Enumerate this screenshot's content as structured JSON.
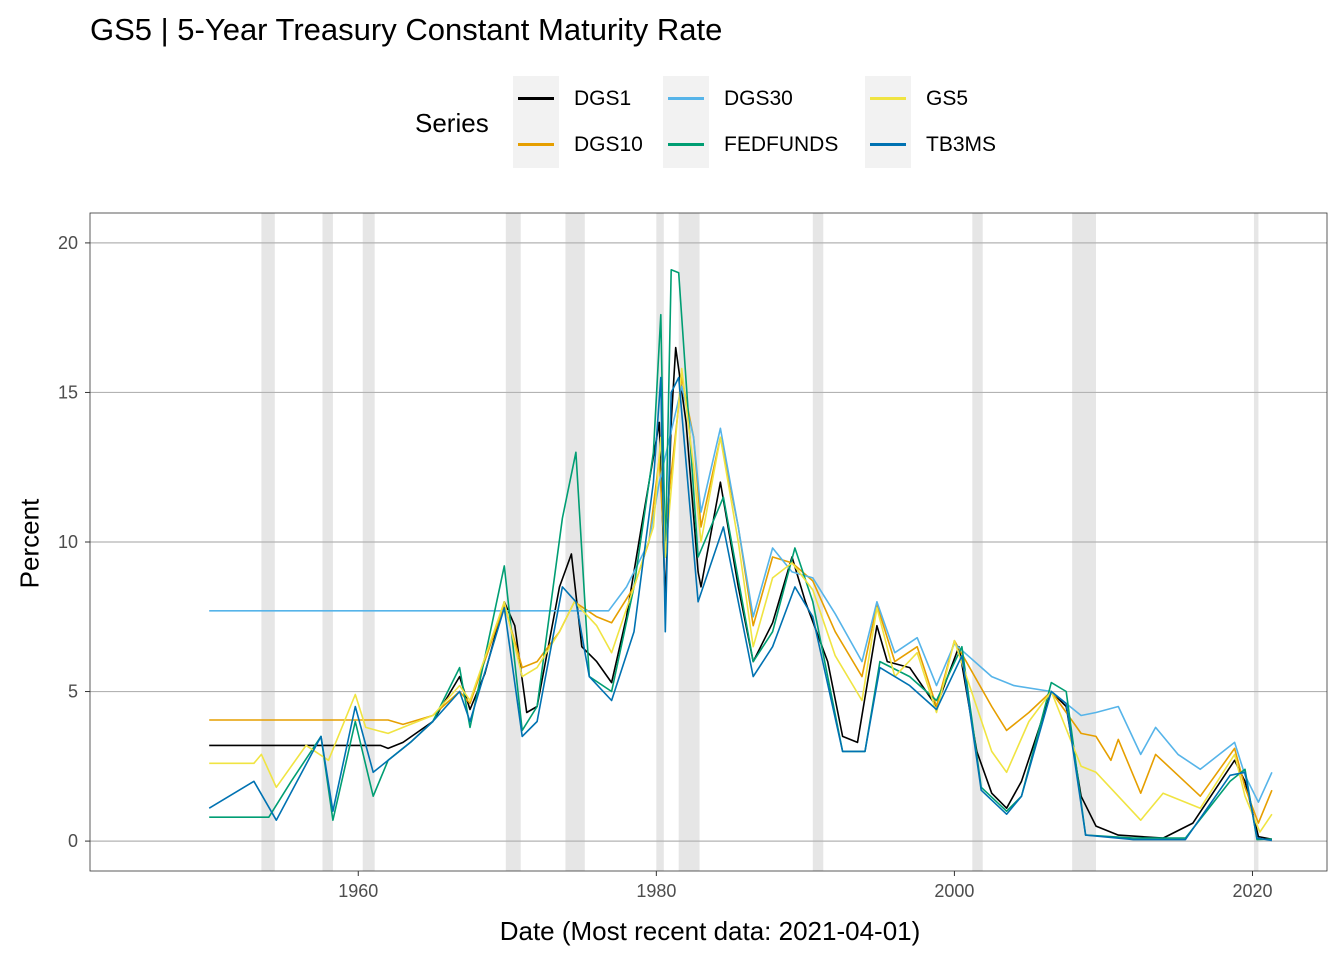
{
  "title": "GS5 | 5-Year Treasury Constant Maturity Rate",
  "legend": {
    "title": "Series",
    "items": [
      {
        "label": "DGS1",
        "color": "#000000"
      },
      {
        "label": "DGS10",
        "color": "#E69F00"
      },
      {
        "label": "DGS30",
        "color": "#56B4E9"
      },
      {
        "label": "FEDFUNDS",
        "color": "#009E73"
      },
      {
        "label": "GS5",
        "color": "#F0E442"
      },
      {
        "label": "TB3MS",
        "color": "#0072B2"
      }
    ]
  },
  "chart_data": {
    "type": "line",
    "title": "GS5 | 5-Year Treasury Constant Maturity Rate",
    "xlabel": "Date (Most recent data: 2021-04-01)",
    "ylabel": "Percent",
    "xlim": [
      1942,
      2025
    ],
    "ylim": [
      -1,
      21
    ],
    "x_ticks": [
      1960,
      1980,
      2000,
      2020
    ],
    "y_ticks": [
      0,
      5,
      10,
      15,
      20
    ],
    "grid": true,
    "legend_position": "top",
    "recessions": [
      [
        1953.5,
        1954.4
      ],
      [
        1957.6,
        1958.3
      ],
      [
        1960.3,
        1961.1
      ],
      [
        1969.9,
        1970.9
      ],
      [
        1973.9,
        1975.2
      ],
      [
        1980.0,
        1980.5
      ],
      [
        1981.5,
        1982.9
      ],
      [
        1990.5,
        1991.2
      ],
      [
        2001.2,
        2001.9
      ],
      [
        2007.9,
        2009.5
      ],
      [
        2020.1,
        2020.4
      ]
    ],
    "series": [
      {
        "name": "DGS1",
        "color": "#000000",
        "points": [
          [
            1950.0,
            3.2
          ],
          [
            1961.5,
            3.2
          ],
          [
            1962.0,
            3.1
          ],
          [
            1963.0,
            3.3
          ],
          [
            1965.0,
            4.0
          ],
          [
            1966.8,
            5.5
          ],
          [
            1967.5,
            4.4
          ],
          [
            1968.5,
            5.6
          ],
          [
            1969.8,
            8.0
          ],
          [
            1970.5,
            7.2
          ],
          [
            1971.3,
            4.3
          ],
          [
            1972.0,
            4.5
          ],
          [
            1973.5,
            8.5
          ],
          [
            1974.3,
            9.6
          ],
          [
            1975.0,
            6.5
          ],
          [
            1976.0,
            6.0
          ],
          [
            1977.0,
            5.3
          ],
          [
            1978.0,
            7.5
          ],
          [
            1979.0,
            10.5
          ],
          [
            1980.2,
            14.0
          ],
          [
            1980.6,
            8.0
          ],
          [
            1981.0,
            14.0
          ],
          [
            1981.3,
            16.5
          ],
          [
            1982.0,
            14.0
          ],
          [
            1982.8,
            9.0
          ],
          [
            1983.0,
            8.5
          ],
          [
            1984.3,
            12.0
          ],
          [
            1985.5,
            8.5
          ],
          [
            1986.5,
            6.0
          ],
          [
            1987.8,
            7.3
          ],
          [
            1989.1,
            9.5
          ],
          [
            1990.0,
            8.0
          ],
          [
            1991.5,
            6.0
          ],
          [
            1992.5,
            3.5
          ],
          [
            1993.5,
            3.3
          ],
          [
            1994.8,
            7.2
          ],
          [
            1995.5,
            6.0
          ],
          [
            1997.0,
            5.8
          ],
          [
            1998.8,
            4.5
          ],
          [
            2000.3,
            6.5
          ],
          [
            2001.5,
            3.0
          ],
          [
            2002.5,
            1.6
          ],
          [
            2003.5,
            1.1
          ],
          [
            2004.5,
            2.0
          ],
          [
            2006.5,
            5.0
          ],
          [
            2007.5,
            4.5
          ],
          [
            2008.5,
            1.5
          ],
          [
            2009.5,
            0.5
          ],
          [
            2011.0,
            0.2
          ],
          [
            2014.0,
            0.1
          ],
          [
            2016.0,
            0.6
          ],
          [
            2018.8,
            2.7
          ],
          [
            2019.5,
            2.0
          ],
          [
            2020.4,
            0.15
          ],
          [
            2021.3,
            0.06
          ]
        ]
      },
      {
        "name": "DGS10",
        "color": "#E69F00",
        "points": [
          [
            1950.0,
            4.05
          ],
          [
            1962.0,
            4.05
          ],
          [
            1963.0,
            3.9
          ],
          [
            1965.0,
            4.2
          ],
          [
            1966.8,
            5.0
          ],
          [
            1967.5,
            4.6
          ],
          [
            1969.8,
            7.9
          ],
          [
            1971.0,
            5.8
          ],
          [
            1972.0,
            6.0
          ],
          [
            1973.5,
            7.0
          ],
          [
            1974.5,
            8.0
          ],
          [
            1976.0,
            7.5
          ],
          [
            1977.0,
            7.3
          ],
          [
            1978.5,
            8.5
          ],
          [
            1979.5,
            10.0
          ],
          [
            1980.2,
            12.8
          ],
          [
            1980.5,
            10.0
          ],
          [
            1981.7,
            15.5
          ],
          [
            1982.5,
            13.5
          ],
          [
            1983.0,
            10.5
          ],
          [
            1984.3,
            13.5
          ],
          [
            1985.5,
            10.5
          ],
          [
            1986.5,
            7.2
          ],
          [
            1987.8,
            9.5
          ],
          [
            1989.1,
            9.3
          ],
          [
            1990.5,
            8.7
          ],
          [
            1992.0,
            7.0
          ],
          [
            1993.8,
            5.5
          ],
          [
            1994.8,
            7.9
          ],
          [
            1996.0,
            6.0
          ],
          [
            1997.5,
            6.5
          ],
          [
            1998.8,
            4.5
          ],
          [
            2000.0,
            6.7
          ],
          [
            2002.5,
            4.5
          ],
          [
            2003.5,
            3.7
          ],
          [
            2005.0,
            4.3
          ],
          [
            2006.5,
            5.0
          ],
          [
            2008.5,
            3.6
          ],
          [
            2009.5,
            3.5
          ],
          [
            2010.5,
            2.7
          ],
          [
            2011.0,
            3.4
          ],
          [
            2012.5,
            1.6
          ],
          [
            2013.5,
            2.9
          ],
          [
            2015.0,
            2.2
          ],
          [
            2016.5,
            1.5
          ],
          [
            2018.8,
            3.1
          ],
          [
            2019.5,
            1.8
          ],
          [
            2020.4,
            0.6
          ],
          [
            2021.3,
            1.7
          ]
        ]
      },
      {
        "name": "DGS30",
        "color": "#56B4E9",
        "points": [
          [
            1950.0,
            7.7
          ],
          [
            1976.8,
            7.7
          ],
          [
            1978.0,
            8.5
          ],
          [
            1979.5,
            10.0
          ],
          [
            1980.2,
            12.0
          ],
          [
            1981.7,
            15.2
          ],
          [
            1982.5,
            13.5
          ],
          [
            1983.0,
            11.0
          ],
          [
            1984.3,
            13.8
          ],
          [
            1985.5,
            10.5
          ],
          [
            1986.5,
            7.5
          ],
          [
            1987.8,
            9.8
          ],
          [
            1989.1,
            9.0
          ],
          [
            1990.5,
            8.8
          ],
          [
            1992.0,
            7.6
          ],
          [
            1993.8,
            6.0
          ],
          [
            1994.8,
            8.0
          ],
          [
            1996.0,
            6.3
          ],
          [
            1997.5,
            6.8
          ],
          [
            1998.8,
            5.2
          ],
          [
            2000.0,
            6.6
          ],
          [
            2002.5,
            5.5
          ],
          [
            2004.0,
            5.2
          ],
          [
            2006.5,
            5.0
          ],
          [
            2008.5,
            4.2
          ],
          [
            2009.5,
            4.3
          ],
          [
            2011.0,
            4.5
          ],
          [
            2012.5,
            2.9
          ],
          [
            2013.5,
            3.8
          ],
          [
            2015.0,
            2.9
          ],
          [
            2016.5,
            2.4
          ],
          [
            2018.8,
            3.3
          ],
          [
            2019.5,
            2.2
          ],
          [
            2020.4,
            1.3
          ],
          [
            2021.3,
            2.3
          ]
        ]
      },
      {
        "name": "FEDFUNDS",
        "color": "#009E73",
        "points": [
          [
            1950.0,
            0.8
          ],
          [
            1954.0,
            0.8
          ],
          [
            1955.5,
            2.0
          ],
          [
            1957.5,
            3.5
          ],
          [
            1958.3,
            0.7
          ],
          [
            1959.8,
            4.0
          ],
          [
            1961.0,
            1.5
          ],
          [
            1962.0,
            2.7
          ],
          [
            1963.5,
            3.3
          ],
          [
            1965.0,
            4.0
          ],
          [
            1966.8,
            5.8
          ],
          [
            1967.5,
            3.8
          ],
          [
            1969.8,
            9.2
          ],
          [
            1971.0,
            3.7
          ],
          [
            1972.0,
            4.5
          ],
          [
            1973.7,
            10.8
          ],
          [
            1974.6,
            13.0
          ],
          [
            1975.5,
            5.5
          ],
          [
            1977.0,
            5.0
          ],
          [
            1978.5,
            8.5
          ],
          [
            1979.8,
            13.0
          ],
          [
            1980.3,
            17.6
          ],
          [
            1980.6,
            9.5
          ],
          [
            1981.0,
            19.1
          ],
          [
            1981.5,
            19.0
          ],
          [
            1982.8,
            9.5
          ],
          [
            1984.5,
            11.5
          ],
          [
            1986.5,
            6.0
          ],
          [
            1987.8,
            7.0
          ],
          [
            1989.3,
            9.8
          ],
          [
            1990.5,
            8.0
          ],
          [
            1992.5,
            3.0
          ],
          [
            1994.0,
            3.0
          ],
          [
            1995.0,
            6.0
          ],
          [
            1997.0,
            5.5
          ],
          [
            1998.8,
            4.7
          ],
          [
            2000.5,
            6.5
          ],
          [
            2001.8,
            1.8
          ],
          [
            2003.5,
            1.0
          ],
          [
            2004.5,
            1.5
          ],
          [
            2006.5,
            5.3
          ],
          [
            2007.5,
            5.0
          ],
          [
            2008.8,
            0.2
          ],
          [
            2012.0,
            0.1
          ],
          [
            2015.5,
            0.1
          ],
          [
            2018.5,
            2.0
          ],
          [
            2019.5,
            2.4
          ],
          [
            2020.3,
            0.05
          ],
          [
            2021.3,
            0.07
          ]
        ]
      },
      {
        "name": "GS5",
        "color": "#F0E442",
        "points": [
          [
            1950.0,
            2.6
          ],
          [
            1953.0,
            2.6
          ],
          [
            1953.5,
            2.9
          ],
          [
            1954.5,
            1.8
          ],
          [
            1956.5,
            3.2
          ],
          [
            1958.0,
            2.7
          ],
          [
            1959.8,
            4.9
          ],
          [
            1960.5,
            3.8
          ],
          [
            1962.0,
            3.6
          ],
          [
            1963.5,
            3.9
          ],
          [
            1965.0,
            4.2
          ],
          [
            1966.8,
            5.2
          ],
          [
            1967.5,
            4.7
          ],
          [
            1969.8,
            8.0
          ],
          [
            1971.0,
            5.5
          ],
          [
            1972.0,
            5.8
          ],
          [
            1973.5,
            7.0
          ],
          [
            1974.5,
            8.0
          ],
          [
            1976.0,
            7.2
          ],
          [
            1977.0,
            6.3
          ],
          [
            1978.5,
            8.5
          ],
          [
            1979.8,
            10.5
          ],
          [
            1980.3,
            13.5
          ],
          [
            1980.6,
            9.5
          ],
          [
            1981.7,
            15.8
          ],
          [
            1982.5,
            12.5
          ],
          [
            1983.0,
            10.0
          ],
          [
            1984.3,
            13.5
          ],
          [
            1985.5,
            10.0
          ],
          [
            1986.5,
            6.5
          ],
          [
            1987.8,
            8.8
          ],
          [
            1989.1,
            9.3
          ],
          [
            1990.5,
            8.4
          ],
          [
            1992.0,
            6.2
          ],
          [
            1993.8,
            4.7
          ],
          [
            1994.8,
            7.8
          ],
          [
            1996.0,
            5.5
          ],
          [
            1997.5,
            6.3
          ],
          [
            1998.8,
            4.3
          ],
          [
            2000.0,
            6.7
          ],
          [
            2002.5,
            3.0
          ],
          [
            2003.5,
            2.3
          ],
          [
            2005.0,
            4.0
          ],
          [
            2006.5,
            5.0
          ],
          [
            2008.5,
            2.5
          ],
          [
            2009.5,
            2.3
          ],
          [
            2011.0,
            1.5
          ],
          [
            2012.5,
            0.7
          ],
          [
            2014.0,
            1.6
          ],
          [
            2016.5,
            1.1
          ],
          [
            2018.8,
            2.9
          ],
          [
            2019.5,
            1.5
          ],
          [
            2020.5,
            0.3
          ],
          [
            2021.3,
            0.9
          ]
        ]
      },
      {
        "name": "TB3MS",
        "color": "#0072B2",
        "points": [
          [
            1950.0,
            1.1
          ],
          [
            1953.0,
            2.0
          ],
          [
            1954.5,
            0.7
          ],
          [
            1957.5,
            3.5
          ],
          [
            1958.3,
            1.0
          ],
          [
            1959.8,
            4.5
          ],
          [
            1961.0,
            2.3
          ],
          [
            1963.5,
            3.3
          ],
          [
            1965.0,
            4.0
          ],
          [
            1966.8,
            5.0
          ],
          [
            1967.5,
            4.0
          ],
          [
            1969.8,
            7.8
          ],
          [
            1971.0,
            3.5
          ],
          [
            1972.0,
            4.0
          ],
          [
            1973.7,
            8.5
          ],
          [
            1974.6,
            8.0
          ],
          [
            1975.5,
            5.5
          ],
          [
            1977.0,
            4.7
          ],
          [
            1978.5,
            7.0
          ],
          [
            1979.8,
            12.0
          ],
          [
            1980.3,
            15.5
          ],
          [
            1980.6,
            7.0
          ],
          [
            1981.0,
            15.0
          ],
          [
            1981.5,
            15.5
          ],
          [
            1982.8,
            8.0
          ],
          [
            1984.5,
            10.5
          ],
          [
            1986.5,
            5.5
          ],
          [
            1987.8,
            6.5
          ],
          [
            1989.3,
            8.5
          ],
          [
            1990.5,
            7.5
          ],
          [
            1992.5,
            3.0
          ],
          [
            1994.0,
            3.0
          ],
          [
            1995.0,
            5.8
          ],
          [
            1997.0,
            5.2
          ],
          [
            1998.8,
            4.4
          ],
          [
            2000.5,
            6.2
          ],
          [
            2001.8,
            1.7
          ],
          [
            2003.5,
            0.9
          ],
          [
            2004.5,
            1.5
          ],
          [
            2006.5,
            5.0
          ],
          [
            2007.5,
            4.6
          ],
          [
            2008.8,
            0.2
          ],
          [
            2012.0,
            0.05
          ],
          [
            2015.5,
            0.05
          ],
          [
            2018.5,
            2.2
          ],
          [
            2019.5,
            2.3
          ],
          [
            2020.3,
            0.1
          ],
          [
            2021.3,
            0.02
          ]
        ]
      }
    ]
  }
}
